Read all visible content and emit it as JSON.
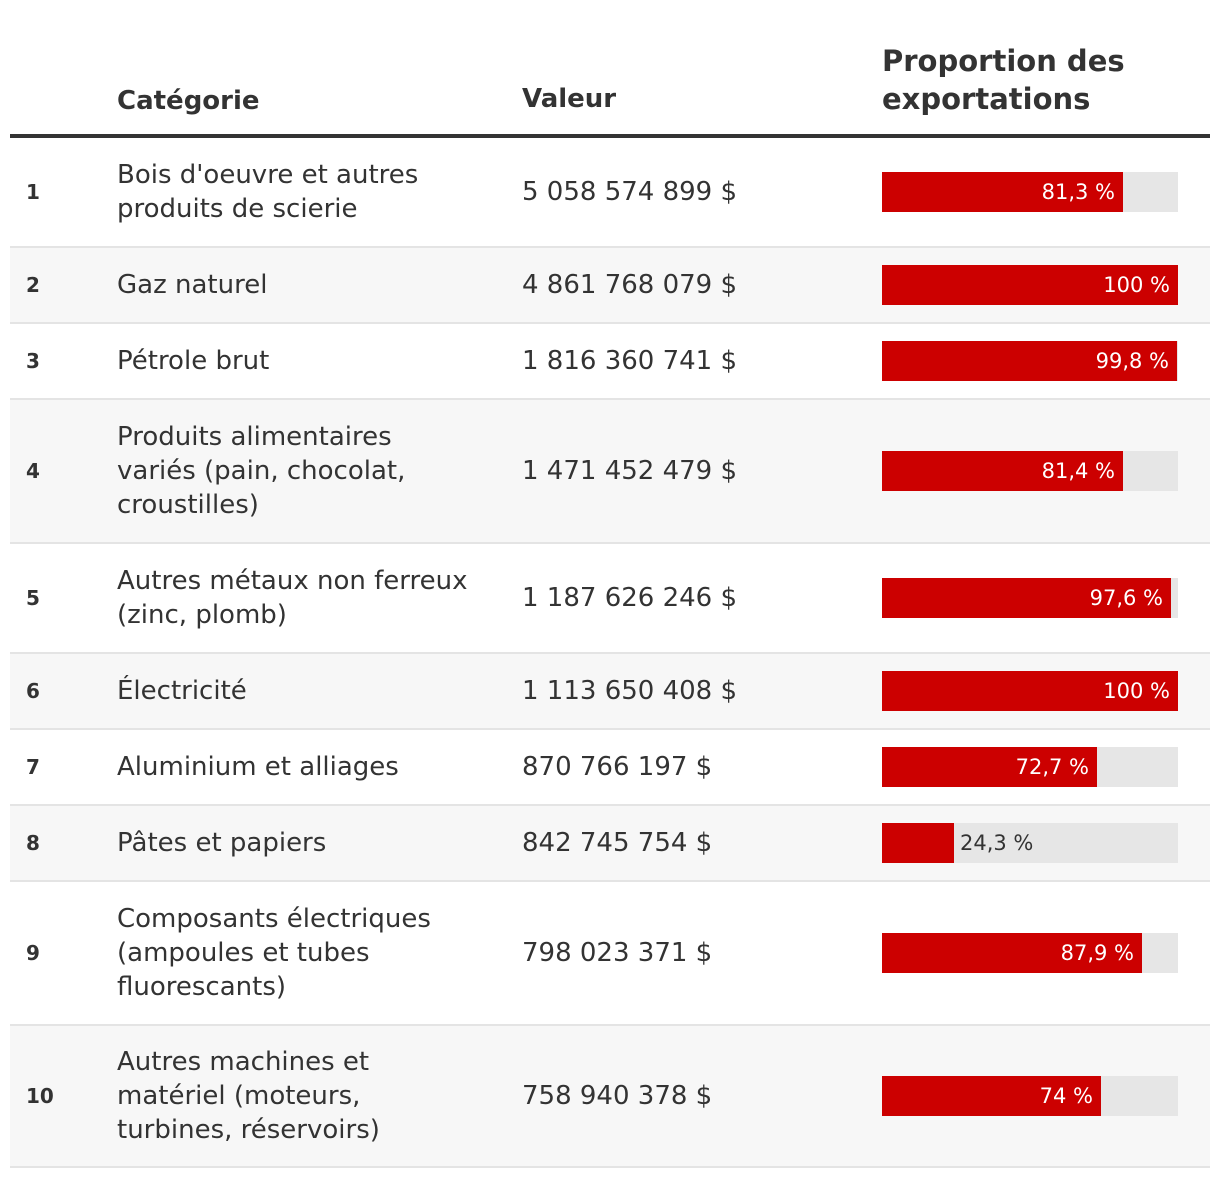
{
  "header": {
    "rank_label": "",
    "category_label": "Catégorie",
    "value_label": "Valeur",
    "proportion_label": "Proportion des exportations"
  },
  "colors": {
    "bar_fill": "#cc0000",
    "bar_track": "#e6e6e6",
    "row_alt": "#f7f7f7",
    "text": "#333333"
  },
  "chart_data": {
    "type": "table",
    "columns": [
      "",
      "Catégorie",
      "Valeur",
      "Proportion des exportations"
    ],
    "rows": [
      {
        "rank": "1",
        "category": "Bois d'oeuvre et autres produits de scierie",
        "value": "5 058 574 899 $",
        "proportion": 81.3,
        "proportion_label": "81,3 %"
      },
      {
        "rank": "2",
        "category": "Gaz naturel",
        "value": "4 861 768 079 $",
        "proportion": 100,
        "proportion_label": "100 %"
      },
      {
        "rank": "3",
        "category": "Pétrole brut",
        "value": "1 816 360 741 $",
        "proportion": 99.8,
        "proportion_label": "99,8 %"
      },
      {
        "rank": "4",
        "category": "Produits alimentaires variés (pain, chocolat, croustilles)",
        "value": "1 471 452 479 $",
        "proportion": 81.4,
        "proportion_label": "81,4 %"
      },
      {
        "rank": "5",
        "category": "Autres métaux non ferreux (zinc, plomb)",
        "value": "1 187 626 246 $",
        "proportion": 97.6,
        "proportion_label": "97,6 %"
      },
      {
        "rank": "6",
        "category": "Électricité",
        "value": "1 113 650 408 $",
        "proportion": 100,
        "proportion_label": "100 %"
      },
      {
        "rank": "7",
        "category": "Aluminium et alliages",
        "value": "870 766 197 $",
        "proportion": 72.7,
        "proportion_label": "72,7 %"
      },
      {
        "rank": "8",
        "category": "Pâtes et papiers",
        "value": "842 745 754 $",
        "proportion": 24.3,
        "proportion_label": "24,3 %"
      },
      {
        "rank": "9",
        "category": "Composants électriques (ampoules et tubes fluorescants)",
        "value": "798 023 371 $",
        "proportion": 87.9,
        "proportion_label": "87,9 %"
      },
      {
        "rank": "10",
        "category": "Autres machines et matériel (moteurs, turbines, réservoirs)",
        "value": "758 940 378 $",
        "proportion": 74,
        "proportion_label": "74 %"
      }
    ],
    "xlim": [
      0,
      100
    ]
  }
}
